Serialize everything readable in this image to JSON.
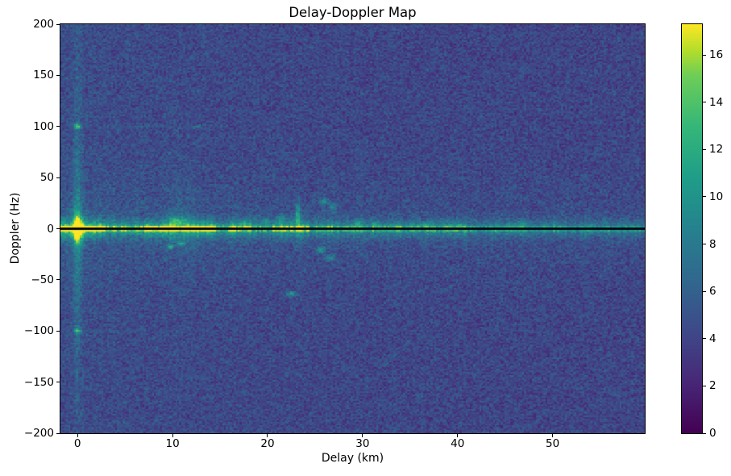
{
  "figure": {
    "background": "#ffffff"
  },
  "chart_data": {
    "type": "heatmap",
    "title": "Delay-Doppler Map",
    "xlabel": "Delay (km)",
    "ylabel": "Doppler (Hz)",
    "xlim": [
      -1.8,
      59.7
    ],
    "ylim": [
      -200,
      200
    ],
    "x_ticks": [
      0,
      10,
      20,
      30,
      40,
      50
    ],
    "x_tick_labels": [
      "0",
      "10",
      "20",
      "30",
      "40",
      "50"
    ],
    "y_ticks": [
      200,
      150,
      100,
      50,
      0,
      -50,
      -100,
      -150,
      -200
    ],
    "y_tick_labels": [
      "200",
      "150",
      "100",
      "50",
      "0",
      "−50",
      "−100",
      "−150",
      "−200"
    ],
    "grid_visible": false,
    "colormap": "viridis",
    "colormap_stops": [
      [
        0.0,
        "#440154"
      ],
      [
        0.125,
        "#482878"
      ],
      [
        0.25,
        "#3e4a89"
      ],
      [
        0.375,
        "#31688e"
      ],
      [
        0.5,
        "#26828e"
      ],
      [
        0.625,
        "#1f9e89"
      ],
      [
        0.75,
        "#35b779"
      ],
      [
        0.875,
        "#6ece58"
      ],
      [
        0.9375,
        "#b5de2b"
      ],
      [
        1.0,
        "#fde725"
      ]
    ],
    "colorbar": {
      "vmin": 0,
      "vmax": 17.3,
      "ticks": [
        0,
        2,
        4,
        6,
        8,
        10,
        12,
        14,
        16
      ],
      "tick_labels": [
        "0",
        "2",
        "4",
        "6",
        "8",
        "10",
        "12",
        "14",
        "16"
      ]
    },
    "grid": {
      "nx": 300,
      "ny": 254
    },
    "noise": {
      "seed": 42,
      "base": 4.0,
      "std": 0.95,
      "left_boost": 0.5,
      "left_scale_km": 25,
      "band_glow_amp": 1.6,
      "band_glow_sigma_hz": 28,
      "band_glow_delay_scale_km": 30
    },
    "zero_line": {
      "doppler_hz": 0,
      "half_width_hz": 1.2,
      "color": "#05051a"
    },
    "ridge": {
      "sigma_hz": 2.5,
      "pedestal_sigma_hz": 9,
      "pedestal_frac": 0.35,
      "amp_base": 6.0,
      "amp_decay": 8.0,
      "decay_km": 30,
      "patches_format": "[delay_start_km, delay_end_km, boost]",
      "patches": [
        [
          -1.8,
          3,
          4.5
        ],
        [
          7,
          14.5,
          5.0
        ],
        [
          16,
          18.5,
          2.5
        ],
        [
          20.5,
          24.5,
          4.0
        ],
        [
          25,
          27.5,
          2.0
        ],
        [
          28,
          30,
          2.0
        ],
        [
          31,
          34,
          2.5
        ],
        [
          35,
          38.5,
          1.8
        ],
        [
          38.5,
          41,
          2.0
        ],
        [
          44,
          47.5,
          2.0
        ],
        [
          49,
          51.5,
          1.5
        ],
        [
          53,
          56,
          1.0
        ]
      ]
    },
    "columns_format": "[delay_km, width_km, amplitude, doppler_extent_hz]",
    "columns": [
      [
        0.0,
        0.45,
        3.6,
        120
      ],
      [
        0.0,
        1.2,
        1.2,
        60
      ],
      [
        9.9,
        0.5,
        1.1,
        45
      ],
      [
        10.8,
        0.5,
        1.3,
        50
      ],
      [
        11.7,
        0.5,
        1.1,
        45
      ],
      [
        12.5,
        0.5,
        0.9,
        40
      ],
      [
        2.2,
        0.4,
        0.6,
        25
      ],
      [
        3.5,
        0.4,
        0.5,
        25
      ],
      [
        6.1,
        0.4,
        0.5,
        22
      ],
      [
        16.4,
        0.4,
        0.5,
        25
      ],
      [
        18.2,
        0.4,
        0.45,
        22
      ],
      [
        23.2,
        0.4,
        0.9,
        32
      ],
      [
        25.9,
        0.4,
        0.7,
        25
      ],
      [
        26.9,
        0.4,
        0.6,
        22
      ],
      [
        30.3,
        0.4,
        0.5,
        18
      ],
      [
        33.0,
        0.4,
        0.4,
        15
      ]
    ],
    "blobs_format": "[delay_km, doppler_hz, sigma_delay_km, sigma_doppler_hz, amplitude]",
    "blobs": [
      [
        0.0,
        0,
        0.45,
        13,
        11.0
      ],
      [
        0.0,
        100,
        0.35,
        2.5,
        8.0
      ],
      [
        0.0,
        -100,
        0.35,
        2.5,
        6.5
      ],
      [
        12.6,
        100,
        0.4,
        2.0,
        3.2
      ],
      [
        6.0,
        100,
        6.0,
        1.3,
        1.1
      ],
      [
        6.0,
        -100,
        6.0,
        1.3,
        0.8
      ],
      [
        22.5,
        -64,
        0.45,
        2.5,
        6.0
      ],
      [
        9.8,
        -18,
        0.4,
        2.0,
        6.5
      ],
      [
        10.9,
        -15,
        0.4,
        2.0,
        5.5
      ],
      [
        23.2,
        14,
        0.28,
        11,
        5.5
      ],
      [
        25.9,
        27,
        0.4,
        3.5,
        4.2
      ],
      [
        26.9,
        21,
        0.4,
        3.5,
        4.2
      ],
      [
        25.6,
        -21,
        0.5,
        3.0,
        4.5
      ],
      [
        26.6,
        -29,
        0.5,
        3.0,
        4.0
      ],
      [
        10.5,
        8,
        0.9,
        4.5,
        4.5
      ],
      [
        17.5,
        6,
        0.5,
        3.0,
        3.5
      ],
      [
        19.8,
        8,
        0.4,
        3.0,
        3.8
      ],
      [
        21.5,
        10,
        0.4,
        4.0,
        4.0
      ],
      [
        29.5,
        6,
        0.4,
        3.0,
        3.2
      ],
      [
        31.2,
        5,
        0.35,
        2.5,
        3.2
      ],
      [
        36.5,
        4,
        0.4,
        2.5,
        2.8
      ],
      [
        40.2,
        4,
        0.35,
        2.0,
        2.5
      ],
      [
        46.8,
        5,
        0.35,
        2.5,
        2.8
      ]
    ]
  }
}
